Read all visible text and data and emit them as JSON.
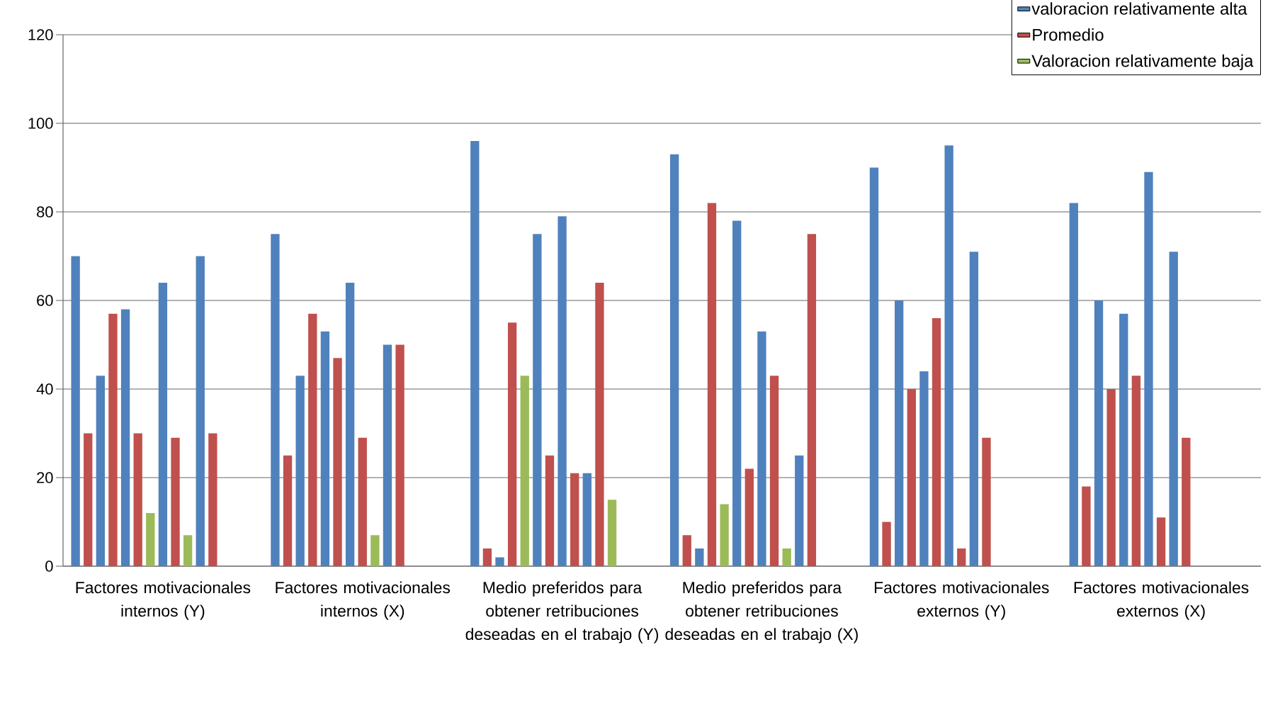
{
  "chart_data": {
    "type": "bar",
    "ylim": [
      0,
      120
    ],
    "yticks": [
      0,
      20,
      40,
      60,
      80,
      100,
      120
    ],
    "grid": "y",
    "legend": "top right",
    "categories": [
      null,
      null,
      null,
      null,
      null,
      null,
      null,
      null,
      "Factores motivacionales internos (Y)",
      null,
      null,
      null,
      null,
      null,
      null,
      null,
      null,
      null,
      null,
      null,
      null,
      null,
      null,
      null,
      "Factores motivacionales internos (X)",
      null,
      null,
      null,
      null,
      null,
      null,
      null,
      null,
      null,
      null,
      null,
      null,
      null,
      null,
      null,
      "Medio preferidos para obtener retribuciones deseadas en el trabajo (Y)",
      null,
      null,
      null,
      null,
      null,
      null,
      null,
      null,
      null,
      null,
      null,
      null,
      null,
      null,
      null,
      "Medio preferidos para obtener retribuciones deseadas en el trabajo (X)",
      null,
      null,
      null,
      null,
      null,
      null,
      null,
      null,
      null,
      null,
      null,
      null,
      null,
      null,
      null,
      "Factores motivacionales externos (Y)",
      null,
      null,
      null,
      null,
      null,
      null,
      null,
      null,
      null,
      null,
      null,
      null,
      null,
      null,
      null,
      "Factores motivacionales externos (X)",
      null,
      null,
      null,
      null,
      null,
      null,
      null
    ],
    "series": [
      {
        "name": "valoracion relativamente alta",
        "color": "#4f81bd",
        "values": [
          null,
          70,
          null,
          43,
          null,
          58,
          null,
          null,
          64,
          null,
          null,
          70,
          null,
          null,
          null,
          null,
          null,
          75,
          null,
          43,
          null,
          53,
          null,
          64,
          null,
          null,
          50,
          null,
          null,
          null,
          null,
          null,
          null,
          96,
          null,
          2,
          null,
          null,
          75,
          null,
          79,
          null,
          21,
          null,
          null,
          null,
          null,
          null,
          null,
          93,
          null,
          4,
          null,
          null,
          78,
          null,
          53,
          null,
          null,
          25,
          null,
          null,
          null,
          null,
          null,
          90,
          null,
          60,
          null,
          44,
          null,
          95,
          null,
          71,
          null,
          null,
          null,
          null,
          null,
          null,
          null,
          82,
          null,
          60,
          null,
          57,
          null,
          89,
          null,
          71,
          null,
          null,
          null,
          null,
          null,
          null
        ]
      },
      {
        "name": "Promedio",
        "color": "#c0504d",
        "values": [
          null,
          null,
          30,
          null,
          57,
          null,
          30,
          null,
          null,
          29,
          null,
          null,
          30,
          null,
          null,
          null,
          null,
          null,
          25,
          null,
          57,
          null,
          47,
          null,
          29,
          null,
          null,
          50,
          null,
          null,
          null,
          null,
          null,
          null,
          4,
          null,
          55,
          null,
          null,
          25,
          null,
          21,
          null,
          64,
          null,
          null,
          null,
          null,
          null,
          null,
          7,
          null,
          82,
          null,
          null,
          22,
          null,
          43,
          null,
          null,
          75,
          null,
          null,
          null,
          null,
          null,
          10,
          null,
          40,
          null,
          56,
          null,
          4,
          null,
          29,
          null,
          null,
          null,
          null,
          null,
          null,
          null,
          18,
          null,
          40,
          null,
          43,
          null,
          11,
          null,
          29,
          null,
          null,
          null,
          null,
          null
        ]
      },
      {
        "name": "Valoracion relativamente baja",
        "color": "#9bbb59",
        "values": [
          null,
          null,
          null,
          null,
          null,
          null,
          null,
          12,
          null,
          null,
          7,
          null,
          null,
          null,
          null,
          null,
          null,
          null,
          null,
          null,
          null,
          null,
          null,
          null,
          null,
          7,
          null,
          null,
          null,
          null,
          null,
          null,
          null,
          null,
          null,
          null,
          null,
          43,
          null,
          null,
          null,
          null,
          null,
          null,
          15,
          null,
          null,
          null,
          null,
          null,
          null,
          null,
          null,
          14,
          null,
          null,
          null,
          null,
          4,
          null,
          null,
          null,
          null,
          null,
          null,
          null,
          null,
          null,
          null,
          null,
          null,
          null,
          null,
          null,
          null,
          null,
          null,
          null,
          null,
          null,
          null,
          null,
          null,
          null,
          null,
          null,
          null,
          null,
          null,
          null,
          null,
          null,
          null,
          null,
          null,
          null
        ]
      }
    ]
  }
}
